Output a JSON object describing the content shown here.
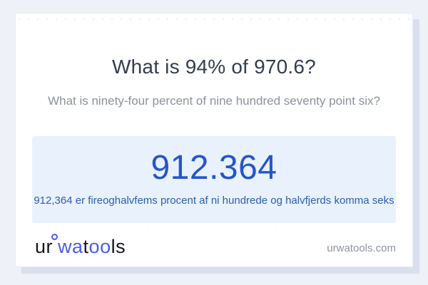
{
  "colors": {
    "page_bg": "#eff1f8",
    "card_bg": "#ffffff",
    "card_shadow": "#d9dfed",
    "title_text": "#333d4f",
    "subtitle_text": "#8b919d",
    "result_box_bg": "#e9f1fc",
    "result_value_text": "#2356c8",
    "result_sentence_text": "#2b5fad",
    "logo_dark": "#15171c",
    "logo_accent": "#4a5bf0",
    "domain_text": "#8d939e"
  },
  "question": {
    "title": "What is 94% of 970.6?",
    "subtitle": "What is ninety-four percent of nine hundred seventy point six?"
  },
  "result": {
    "value": "912.364",
    "sentence": "912,364 er fireoghalvfems procent af ni hundrede og halvfjerds komma seks"
  },
  "footer": {
    "logo": {
      "part1": "ur",
      "part2": "wa",
      "part3": "t",
      "part4": "oo",
      "part5": "ls"
    },
    "domain": "urwatools.com"
  }
}
